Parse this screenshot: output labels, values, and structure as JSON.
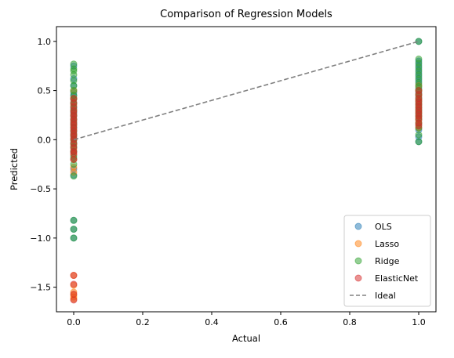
{
  "chart_data": {
    "type": "scatter",
    "title": "Comparison of Regression Models",
    "xlabel": "Actual",
    "ylabel": "Predicted",
    "xlim": [
      -0.05,
      1.05
    ],
    "ylim": [
      -1.75,
      1.15
    ],
    "xticks": [
      0.0,
      0.2,
      0.4,
      0.6,
      0.8,
      1.0
    ],
    "xtick_labels": [
      "0.0",
      "0.2",
      "0.4",
      "0.6",
      "0.8",
      "1.0"
    ],
    "yticks": [
      -1.5,
      -1.0,
      -0.5,
      0.0,
      0.5,
      1.0
    ],
    "ytick_labels": [
      "−1.5",
      "−1.0",
      "−0.5",
      "0.0",
      "0.5",
      "1.0"
    ],
    "grid": false,
    "legend_position": "lower-right",
    "series": [
      {
        "name": "OLS",
        "color": "#1f77b4",
        "alpha": 0.5,
        "x": [
          0,
          0,
          0,
          0,
          0,
          0,
          0,
          0,
          0,
          0,
          0,
          0,
          0,
          0,
          0,
          0,
          0,
          0,
          0,
          0,
          0,
          0,
          0,
          0,
          0,
          0,
          1,
          1,
          1,
          1,
          1,
          1,
          1,
          1,
          1,
          1,
          1,
          1,
          1,
          1,
          1,
          1,
          1,
          1,
          1,
          1,
          1
        ],
        "y": [
          0.75,
          0.62,
          0.55,
          0.48,
          0.42,
          0.37,
          0.32,
          0.28,
          0.24,
          0.2,
          0.16,
          0.12,
          0.08,
          0.04,
          0.0,
          -0.04,
          -0.08,
          -0.12,
          -0.16,
          -0.2,
          -0.3,
          -0.36,
          -0.82,
          -0.91,
          -1.0,
          0.45,
          1.0,
          0.8,
          0.76,
          0.72,
          0.68,
          0.64,
          0.6,
          0.56,
          0.52,
          0.48,
          0.44,
          0.4,
          0.36,
          0.32,
          0.28,
          0.24,
          0.2,
          0.15,
          0.1,
          0.03,
          -0.02
        ]
      },
      {
        "name": "Lasso",
        "color": "#ff7f0e",
        "alpha": 0.5,
        "x": [
          0,
          0,
          0,
          0,
          0,
          0,
          0,
          0,
          0,
          0,
          0,
          0,
          0,
          0,
          0,
          0,
          0,
          0,
          0,
          0,
          0,
          0,
          1,
          1,
          1,
          1,
          1,
          1,
          1,
          1,
          1,
          1,
          1
        ],
        "y": [
          0.5,
          0.42,
          0.36,
          0.3,
          0.25,
          0.2,
          0.15,
          0.1,
          0.05,
          0.0,
          -0.05,
          -0.1,
          -0.15,
          -0.2,
          -0.28,
          -0.33,
          -1.38,
          -1.48,
          -1.55,
          -1.58,
          -1.6,
          -1.62,
          0.55,
          0.5,
          0.45,
          0.4,
          0.36,
          0.32,
          0.28,
          0.24,
          0.2,
          0.16,
          0.12
        ]
      },
      {
        "name": "Ridge",
        "color": "#2ca02c",
        "alpha": 0.5,
        "x": [
          0,
          0,
          0,
          0,
          0,
          0,
          0,
          0,
          0,
          0,
          0,
          0,
          0,
          0,
          0,
          0,
          0,
          0,
          0,
          0,
          0,
          0,
          0,
          0,
          0,
          0,
          0,
          0,
          1,
          1,
          1,
          1,
          1,
          1,
          1,
          1,
          1,
          1,
          1,
          1,
          1,
          1,
          1,
          1,
          1,
          1,
          1,
          1,
          1
        ],
        "y": [
          0.77,
          0.72,
          0.66,
          0.6,
          0.55,
          0.5,
          0.45,
          0.41,
          0.37,
          0.33,
          0.29,
          0.25,
          0.21,
          0.17,
          0.13,
          0.09,
          0.05,
          0.01,
          -0.03,
          -0.07,
          -0.12,
          -0.18,
          -0.25,
          -0.37,
          -0.82,
          -0.91,
          -1.0,
          0.7,
          1.0,
          0.82,
          0.78,
          0.74,
          0.7,
          0.66,
          0.62,
          0.58,
          0.54,
          0.5,
          0.46,
          0.42,
          0.38,
          0.34,
          0.3,
          0.26,
          0.22,
          0.17,
          0.12,
          0.05,
          -0.02
        ]
      },
      {
        "name": "ElasticNet",
        "color": "#d62728",
        "alpha": 0.5,
        "x": [
          0,
          0,
          0,
          0,
          0,
          0,
          0,
          0,
          0,
          0,
          0,
          0,
          0,
          0,
          0,
          0,
          0,
          0,
          0,
          0,
          0,
          0,
          0,
          1,
          1,
          1,
          1,
          1,
          1,
          1,
          1,
          1,
          1,
          1,
          1
        ],
        "y": [
          0.42,
          0.38,
          0.34,
          0.3,
          0.27,
          0.24,
          0.21,
          0.18,
          0.15,
          0.12,
          0.09,
          0.06,
          0.03,
          0.0,
          -0.04,
          -0.08,
          -0.14,
          -0.2,
          -1.38,
          -1.47,
          -1.57,
          -1.63,
          -0.12,
          0.5,
          0.46,
          0.42,
          0.39,
          0.36,
          0.33,
          0.3,
          0.27,
          0.24,
          0.21,
          0.17,
          0.14
        ]
      }
    ],
    "lines": [
      {
        "name": "Ideal",
        "color": "#808080",
        "style": "dashed",
        "x": [
          0,
          1
        ],
        "y": [
          0,
          1
        ]
      }
    ]
  }
}
